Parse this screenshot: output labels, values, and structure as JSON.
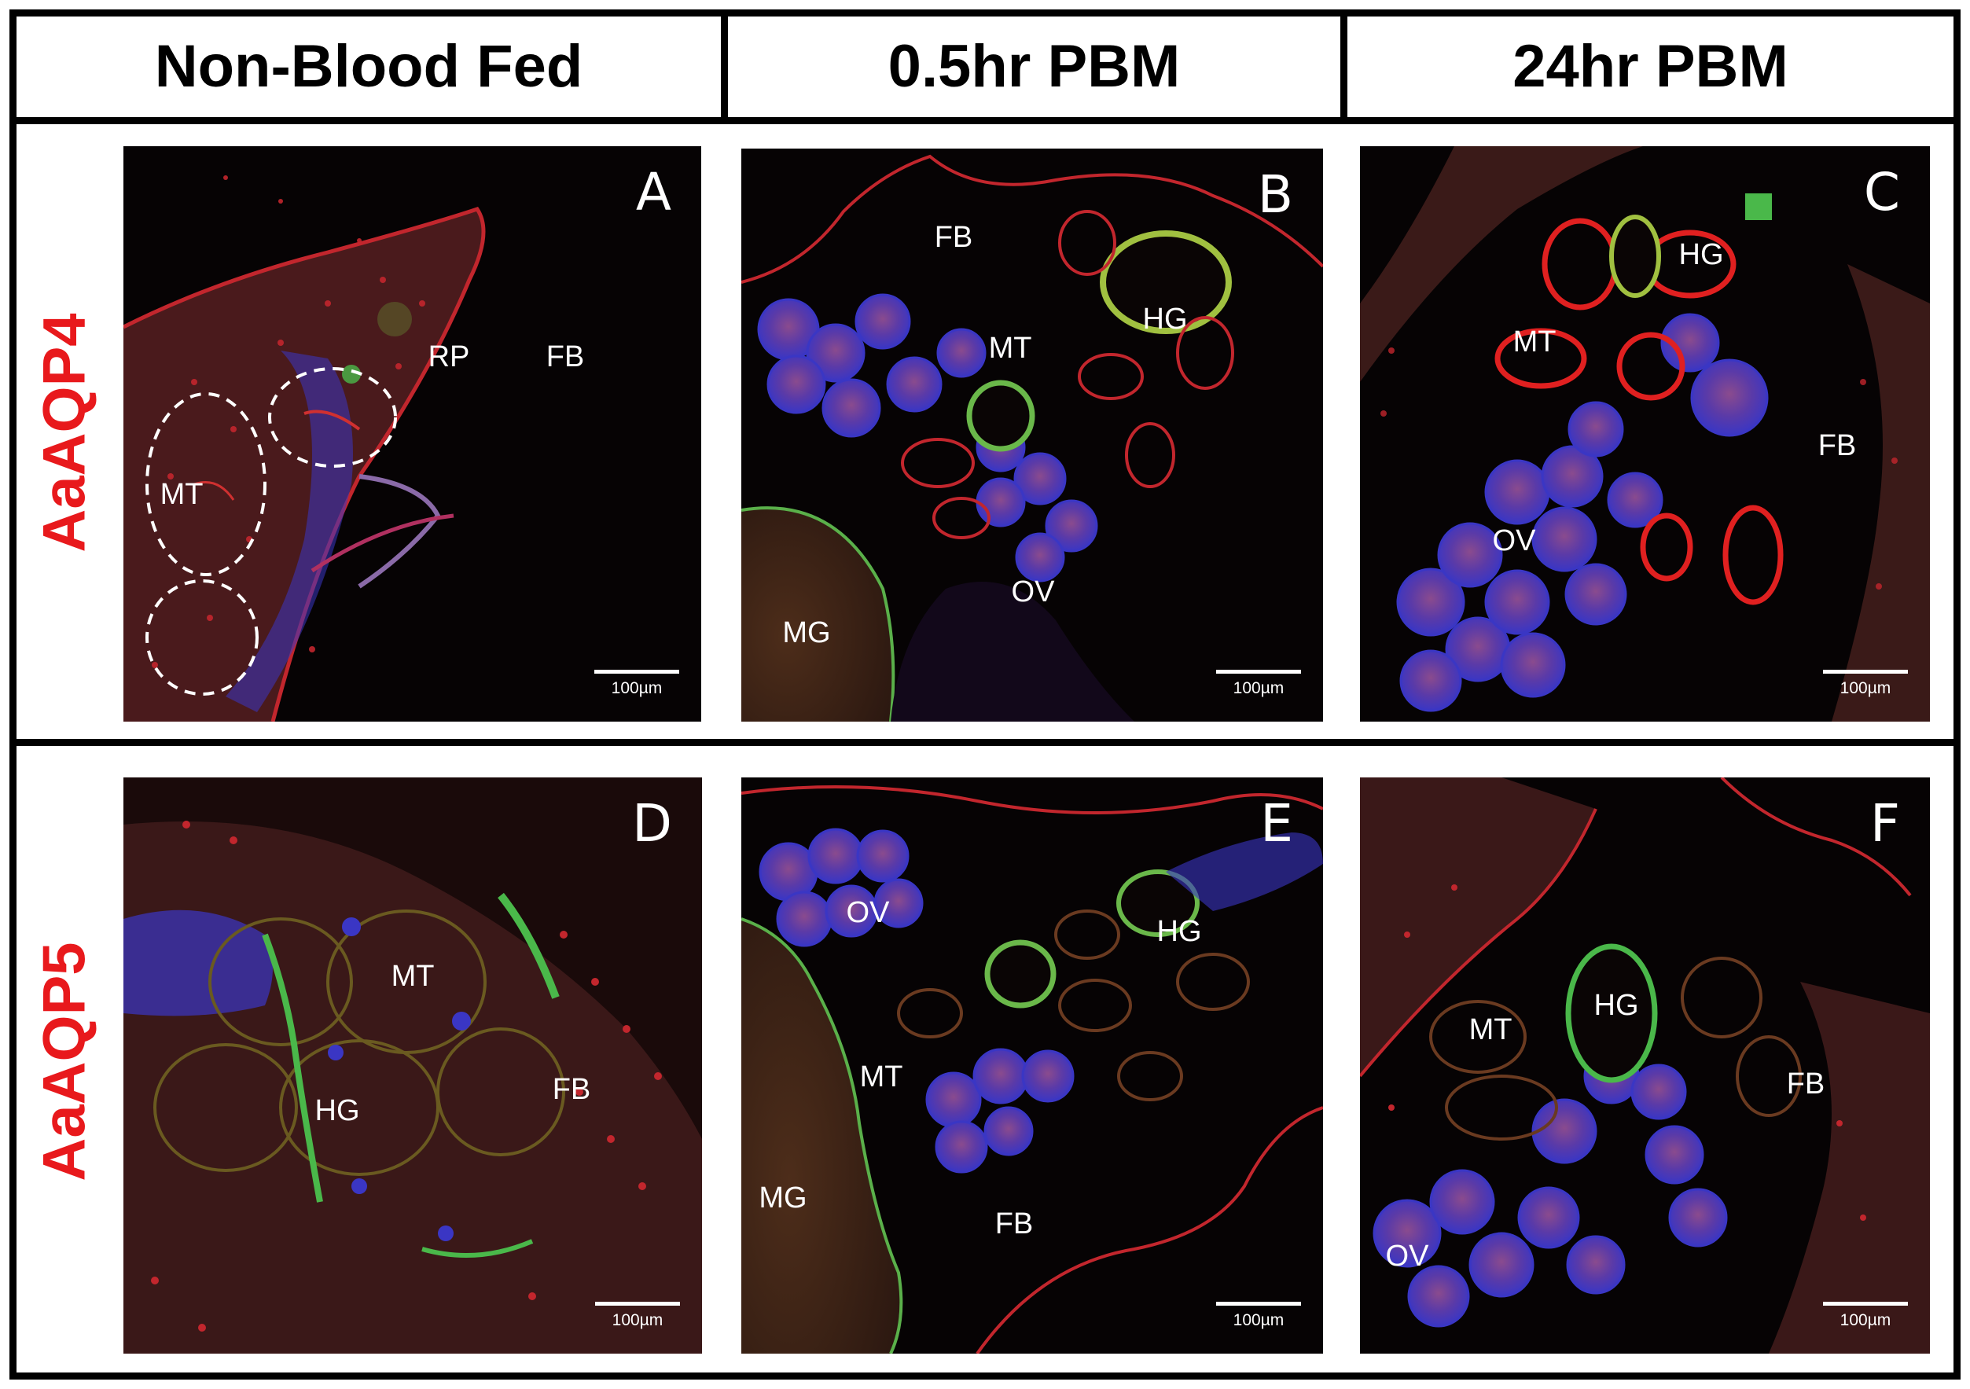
{
  "columns": [
    "Non-Blood Fed",
    "0.5hr PBM",
    "24hr PBM"
  ],
  "rows": [
    "AaAQP4",
    "AaAQP5"
  ],
  "scale_bar": "100µm",
  "colors": {
    "row_label": "#e8191c",
    "panel_bg": "#060304",
    "stain_red": "#c2262d",
    "stain_blue": "#3a36c4",
    "stain_green": "#5ad23a",
    "annotation": "#ffffff"
  },
  "panels": [
    {
      "letter": "A",
      "labels": [
        "RP",
        "FB",
        "MT"
      ]
    },
    {
      "letter": "B",
      "labels": [
        "FB",
        "HG",
        "MT",
        "OV",
        "MG"
      ]
    },
    {
      "letter": "C",
      "labels": [
        "HG",
        "MT",
        "FB",
        "OV"
      ]
    },
    {
      "letter": "D",
      "labels": [
        "MT",
        "FB",
        "HG"
      ]
    },
    {
      "letter": "E",
      "labels": [
        "OV",
        "HG",
        "MT",
        "MG",
        "FB"
      ]
    },
    {
      "letter": "F",
      "labels": [
        "HG",
        "MT",
        "FB",
        "OV"
      ]
    }
  ]
}
